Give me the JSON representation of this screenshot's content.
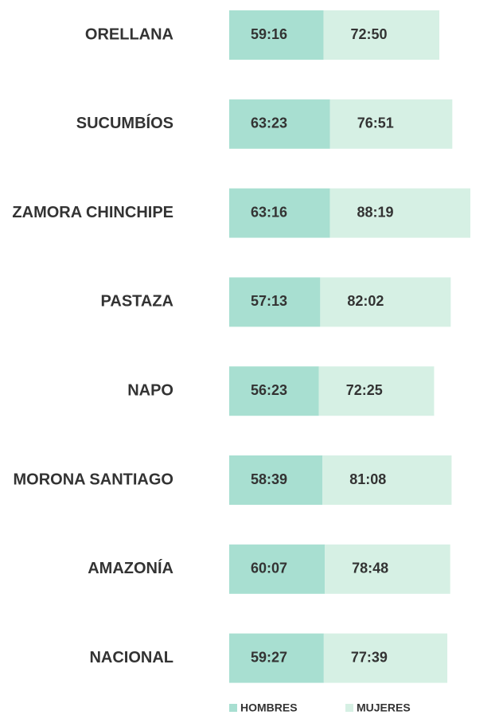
{
  "chart_data": {
    "type": "bar",
    "orientation": "horizontal",
    "stacked": true,
    "categories": [
      "ORELLANA",
      "SUCUMBÍOS",
      "ZAMORA CHINCHIPE",
      "PASTAZA",
      "NAPO",
      "MORONA SANTIAGO",
      "AMAZONÍA",
      "NACIONAL"
    ],
    "series": [
      {
        "name": "HOMBRES",
        "color": "#a8dfd1",
        "values": [
          59.267,
          63.383,
          63.267,
          57.217,
          56.383,
          58.65,
          60.117,
          59.45
        ],
        "value_labels": [
          "59:16",
          "63:23",
          "63:16",
          "57:13",
          "56:23",
          "58:39",
          "60:07",
          "59:27"
        ]
      },
      {
        "name": "MUJERES",
        "color": "#d6f0e4",
        "values": [
          72.833,
          76.85,
          88.317,
          82.033,
          72.417,
          81.133,
          78.8,
          77.65
        ],
        "value_labels": [
          "72:50",
          "76:51",
          "88:19",
          "82:02",
          "72:25",
          "81:08",
          "78:48",
          "77:39"
        ]
      }
    ],
    "legend": "bottom"
  }
}
